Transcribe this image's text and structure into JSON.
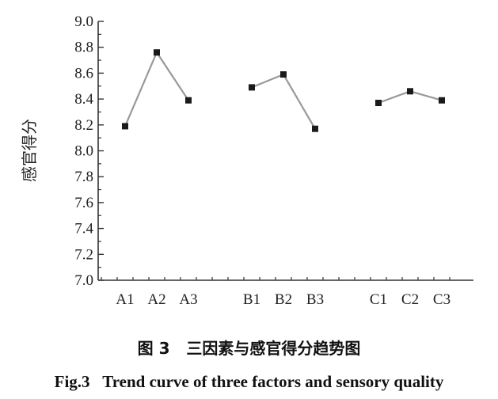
{
  "chart_data": {
    "type": "line",
    "ylabel": "感官得分",
    "ylim": [
      7.0,
      9.0
    ],
    "yticks": [
      "7.0",
      "7.2",
      "7.4",
      "7.6",
      "7.8",
      "8.0",
      "8.2",
      "8.4",
      "8.6",
      "8.8",
      "9.0"
    ],
    "groups": [
      {
        "categories": [
          "A1",
          "A2",
          "A3"
        ],
        "values": [
          8.19,
          8.76,
          8.39
        ]
      },
      {
        "categories": [
          "B1",
          "B2",
          "B3"
        ],
        "values": [
          8.49,
          8.59,
          8.17
        ]
      },
      {
        "categories": [
          "C1",
          "C2",
          "C3"
        ],
        "values": [
          8.37,
          8.46,
          8.39
        ]
      }
    ],
    "grid": false,
    "line_color": "#999999",
    "marker_color": "#1a1a1a"
  },
  "caption": {
    "cn_number": "图 3",
    "cn_title": "三因素与感官得分趋势图",
    "en_number": "Fig.3",
    "en_title": "Trend curve of three factors and sensory quality"
  }
}
